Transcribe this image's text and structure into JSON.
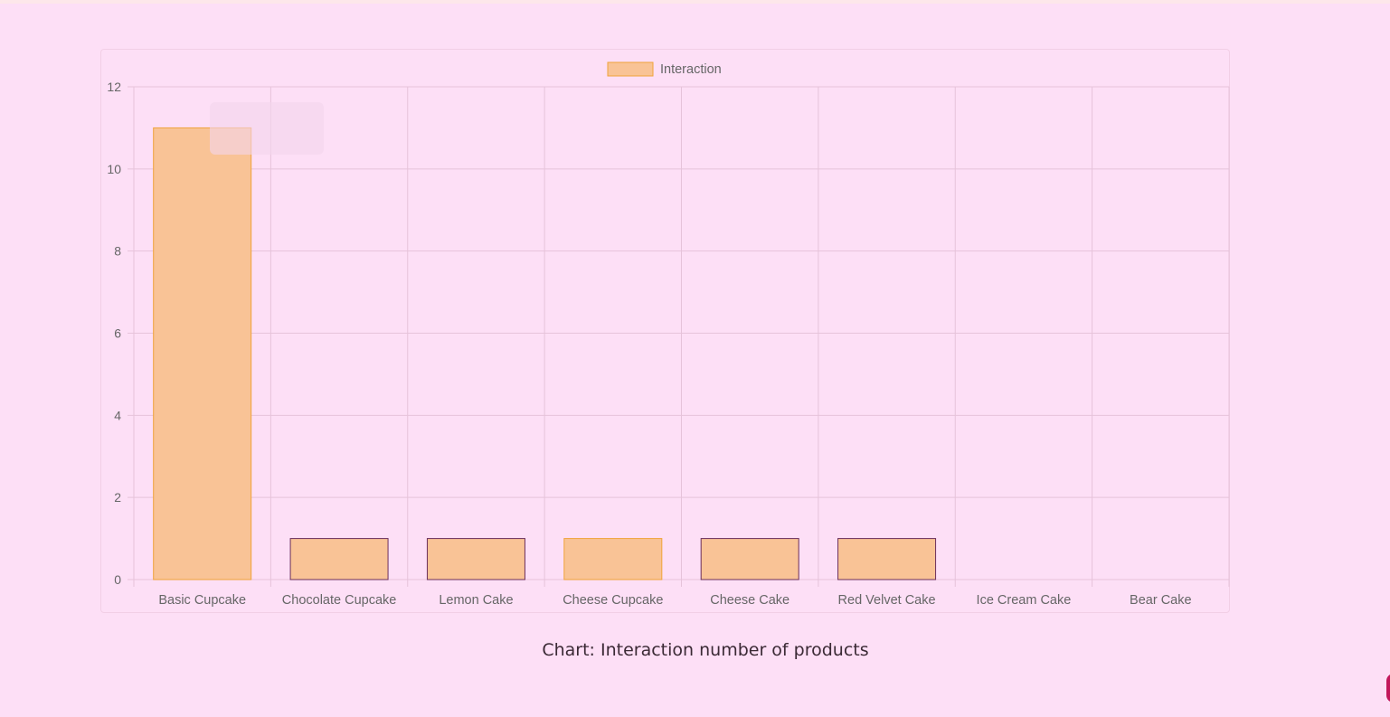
{
  "chart_data": {
    "type": "bar",
    "categories": [
      "Basic Cupcake",
      "Chocolate Cupcake",
      "Lemon Cake",
      "Cheese Cupcake",
      "Cheese Cake",
      "Red Velvet Cake",
      "Ice Cream Cake",
      "Bear Cake"
    ],
    "series": [
      {
        "name": "Interaction",
        "values": [
          11,
          1,
          1,
          1,
          1,
          1,
          0,
          0
        ],
        "border_colors": [
          "#f0a33a",
          "#6b2f5c",
          "#6b2f5c",
          "#f0a33a",
          "#6b2f5c",
          "#6b2f5c",
          "#6b2f5c",
          "#6b2f5c"
        ]
      }
    ],
    "fill_color": "#f9c396",
    "title": "",
    "xlabel": "",
    "ylabel": "",
    "ylim": [
      0,
      12
    ],
    "y_ticks": [
      "0",
      "2",
      "4",
      "6",
      "8",
      "10",
      "12"
    ],
    "grid": true,
    "legend": "top-center"
  },
  "caption": "Chart: Interaction number of products",
  "colors": {
    "background": "#fddff6",
    "grid": "#e6c3da",
    "tick_text": "#666666"
  }
}
